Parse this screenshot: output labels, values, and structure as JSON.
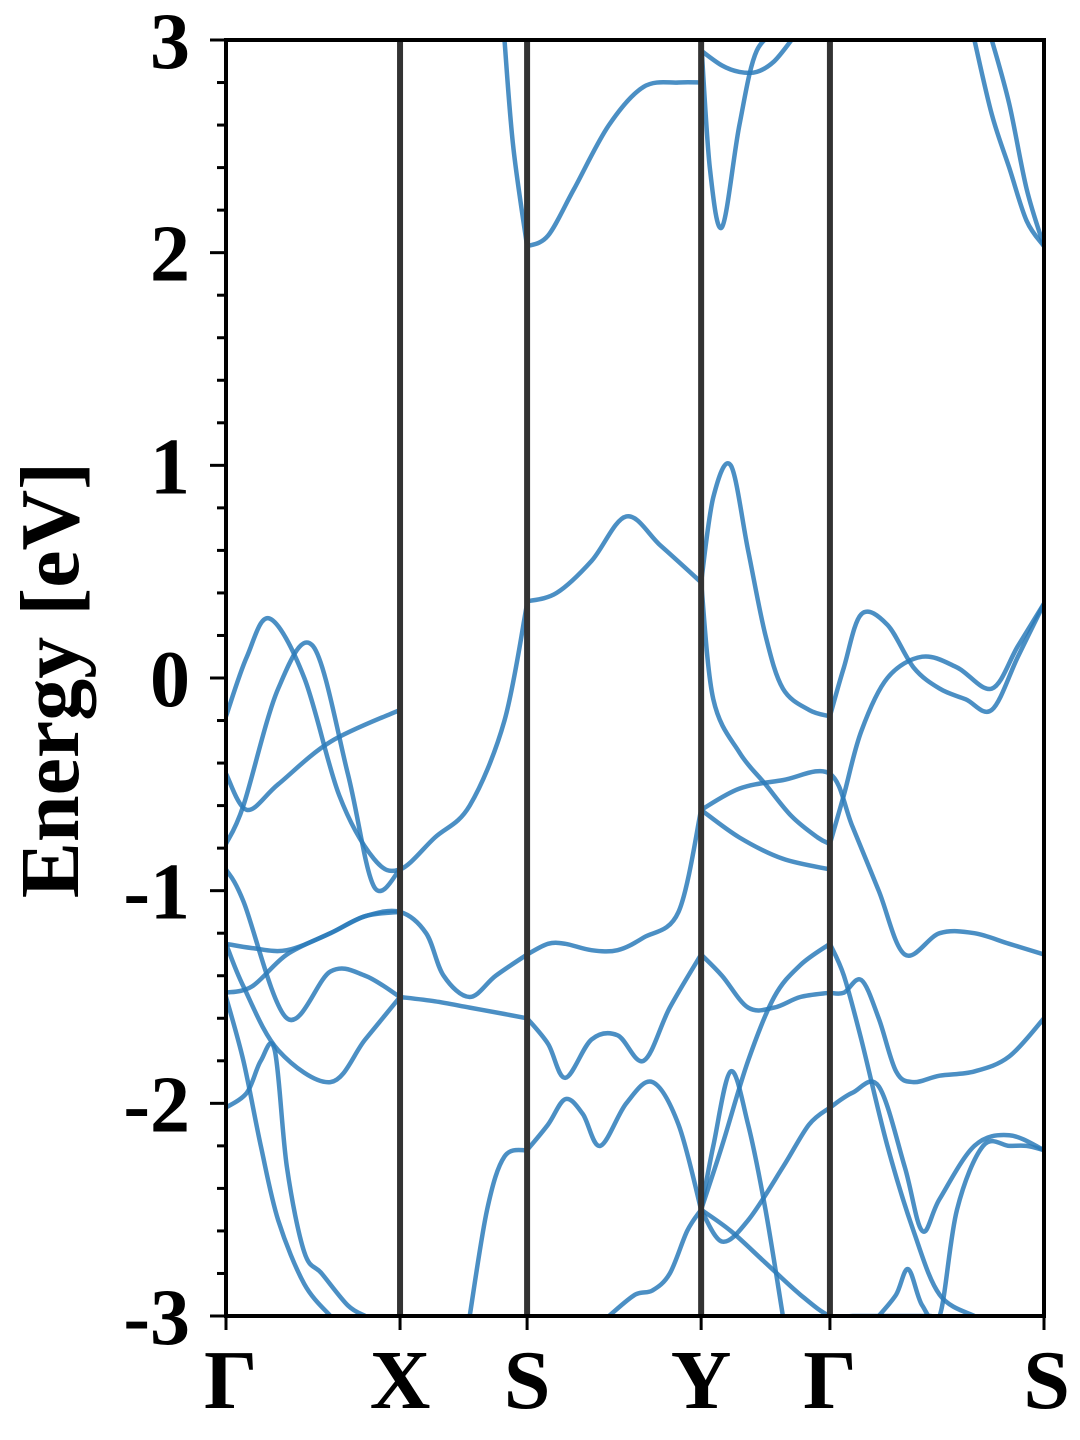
{
  "chart_data": {
    "type": "line",
    "title": "",
    "xlabel": "",
    "ylabel": "Energy [eV]",
    "ylim": [
      -3,
      3
    ],
    "y_ticks": [
      "-3",
      "-2",
      "-1",
      "0",
      "1",
      "2",
      "3"
    ],
    "y_minor_step": 0.2,
    "x_ticks": [
      {
        "label": "Γ",
        "pos": 0.0
      },
      {
        "label": "X",
        "pos": 1.0
      },
      {
        "label": "S",
        "pos": 1.73
      },
      {
        "label": "Y",
        "pos": 2.73
      },
      {
        "label": "Γ",
        "pos": 3.47
      },
      {
        "label": "S",
        "pos": 4.7
      }
    ],
    "xlim": [
      0,
      4.7
    ],
    "colors": {
      "bands": "#2b7bba",
      "kpath_lines": "#333333"
    },
    "grid": false,
    "series": [
      {
        "x": [
          0,
          0.12,
          0.25,
          0.45,
          0.65,
          0.85,
          1.0,
          1.2,
          1.4,
          1.6,
          1.73
        ],
        "y": [
          -0.18,
          0.1,
          0.28,
          0.0,
          -0.55,
          -0.85,
          -0.9,
          -0.75,
          -0.6,
          -0.2,
          0.35
        ]
      },
      {
        "x": [
          0,
          0.1,
          0.3,
          0.5,
          0.7,
          0.85,
          1.0
        ],
        "y": [
          -0.78,
          -0.6,
          -0.05,
          0.15,
          -0.45,
          -0.98,
          -0.9
        ]
      },
      {
        "x": [
          0,
          0.12,
          0.3,
          0.6,
          1.0
        ],
        "y": [
          -0.45,
          -0.62,
          -0.5,
          -0.3,
          -0.15
        ]
      },
      {
        "x": [
          1.73,
          1.9,
          2.1,
          2.3,
          2.5,
          2.73
        ],
        "y": [
          0.36,
          0.4,
          0.55,
          0.76,
          0.62,
          0.45
        ]
      },
      {
        "x": [
          2.73,
          2.8,
          2.9,
          3.0,
          3.1,
          3.2,
          3.35,
          3.47
        ],
        "y": [
          0.45,
          0.85,
          1.0,
          0.6,
          0.2,
          -0.05,
          -0.15,
          -0.18
        ]
      },
      {
        "x": [
          3.47,
          3.55,
          3.65,
          3.8,
          3.95,
          4.1,
          4.25,
          4.4,
          4.55,
          4.7
        ],
        "y": [
          -0.18,
          0.05,
          0.3,
          0.25,
          0.05,
          -0.05,
          -0.1,
          -0.15,
          0.1,
          0.35
        ]
      },
      {
        "x": [
          2.73,
          2.8,
          2.95,
          3.1,
          3.25,
          3.4,
          3.47
        ],
        "y": [
          0.45,
          -0.1,
          -0.35,
          -0.5,
          -0.65,
          -0.75,
          -0.78
        ]
      },
      {
        "x": [
          3.47,
          3.55,
          3.65,
          3.8,
          4.0,
          4.2,
          4.4,
          4.55,
          4.7
        ],
        "y": [
          -0.78,
          -0.55,
          -0.25,
          0.0,
          0.1,
          0.05,
          -0.05,
          0.15,
          0.35
        ]
      },
      {
        "x": [
          2.73,
          2.95,
          3.2,
          3.47,
          3.6,
          3.75,
          3.9,
          4.1,
          4.3,
          4.5,
          4.7
        ],
        "y": [
          -0.62,
          -0.52,
          -0.48,
          -0.45,
          -0.7,
          -1.0,
          -1.3,
          -1.2,
          -1.2,
          -1.25,
          -1.3
        ]
      },
      {
        "x": [
          2.73,
          2.95,
          3.2,
          3.47
        ],
        "y": [
          -0.62,
          -0.75,
          -0.85,
          -0.9
        ]
      },
      {
        "x": [
          0,
          0.15,
          0.35,
          0.6,
          0.8,
          1.0,
          1.15,
          1.25,
          1.4,
          1.55,
          1.73
        ],
        "y": [
          -1.25,
          -1.27,
          -1.28,
          -1.2,
          -1.12,
          -1.1,
          -1.2,
          -1.4,
          -1.5,
          -1.4,
          -1.3
        ]
      },
      {
        "x": [
          1.73,
          1.85,
          1.95,
          2.1,
          2.25,
          2.4,
          2.6,
          2.73
        ],
        "y": [
          -1.3,
          -1.25,
          -1.25,
          -1.28,
          -1.28,
          -1.22,
          -1.1,
          -0.62
        ]
      },
      {
        "x": [
          0,
          0.15,
          0.35,
          0.6,
          0.8,
          1.0
        ],
        "y": [
          -1.48,
          -1.45,
          -1.3,
          -1.2,
          -1.12,
          -1.1
        ]
      },
      {
        "x": [
          0,
          0.1,
          0.35,
          0.6,
          0.8,
          1.0
        ],
        "y": [
          -0.9,
          -1.05,
          -1.6,
          -1.38,
          -1.4,
          -1.5
        ]
      },
      {
        "x": [
          1.0,
          1.2,
          1.4,
          1.6,
          1.73
        ],
        "y": [
          -1.5,
          -1.52,
          -1.55,
          -1.58,
          -1.6
        ]
      },
      {
        "x": [
          1.73,
          1.85,
          1.95,
          2.1,
          2.25,
          2.4,
          2.55,
          2.73
        ],
        "y": [
          -1.6,
          -1.72,
          -1.88,
          -1.7,
          -1.68,
          -1.8,
          -1.55,
          -1.3
        ]
      },
      {
        "x": [
          2.73,
          2.85,
          3.0,
          3.15,
          3.3,
          3.47
        ],
        "y": [
          -1.3,
          -1.4,
          -1.55,
          -1.55,
          -1.5,
          -1.48
        ]
      },
      {
        "x": [
          3.47,
          3.55,
          3.65,
          3.75,
          3.85,
          3.95,
          4.1,
          4.3,
          4.5,
          4.7
        ],
        "y": [
          -1.48,
          -1.48,
          -1.42,
          -1.6,
          -1.85,
          -1.9,
          -1.87,
          -1.85,
          -1.78,
          -1.6
        ]
      },
      {
        "x": [
          0,
          0.1,
          0.3,
          0.6,
          0.8,
          1.0
        ],
        "y": [
          -1.25,
          -1.45,
          -1.75,
          -1.9,
          -1.7,
          -1.5
        ]
      },
      {
        "x": [
          0,
          0.12,
          0.2,
          0.28,
          0.35,
          0.45,
          0.55,
          0.7,
          0.8
        ],
        "y": [
          -2.02,
          -1.95,
          -1.8,
          -1.75,
          -2.3,
          -2.7,
          -2.8,
          -2.95,
          -3.0
        ]
      },
      {
        "x": [
          0,
          0.1,
          0.2,
          0.3,
          0.45,
          0.6
        ],
        "y": [
          -1.5,
          -1.8,
          -2.2,
          -2.55,
          -2.85,
          -3.0
        ]
      },
      {
        "x": [
          1.4,
          1.5,
          1.6,
          1.73
        ],
        "y": [
          -3.0,
          -2.5,
          -2.25,
          -2.22
        ]
      },
      {
        "x": [
          1.73,
          1.85,
          1.95,
          2.05,
          2.15,
          2.3,
          2.45,
          2.6,
          2.73
        ],
        "y": [
          -2.22,
          -2.1,
          -1.98,
          -2.05,
          -2.2,
          -2.0,
          -1.9,
          -2.1,
          -2.5
        ]
      },
      {
        "x": [
          2.73,
          2.85,
          3.0,
          3.15,
          3.3,
          3.47
        ],
        "y": [
          -2.5,
          -2.2,
          -1.8,
          -1.5,
          -1.35,
          -1.25
        ]
      },
      {
        "x": [
          2.73,
          2.85,
          3.0,
          3.2,
          3.35,
          3.47
        ],
        "y": [
          -2.5,
          -2.65,
          -2.55,
          -2.3,
          -2.1,
          -2.02
        ]
      },
      {
        "x": [
          3.47,
          3.6,
          3.75,
          3.9,
          4.0,
          4.1,
          4.3,
          4.5,
          4.7
        ],
        "y": [
          -2.02,
          -1.95,
          -1.92,
          -2.3,
          -2.6,
          -2.45,
          -2.2,
          -2.15,
          -2.22
        ]
      },
      {
        "x": [
          2.2,
          2.35,
          2.45,
          2.55,
          2.65,
          2.73
        ],
        "y": [
          -3.0,
          -2.9,
          -2.88,
          -2.8,
          -2.6,
          -2.5
        ]
      },
      {
        "x": [
          2.73,
          2.8,
          2.9,
          3.0,
          3.1,
          3.2
        ],
        "y": [
          -2.5,
          -2.2,
          -1.85,
          -2.1,
          -2.5,
          -3.0
        ]
      },
      {
        "x": [
          2.73,
          2.9,
          3.1,
          3.3,
          3.47,
          3.6,
          3.75,
          3.9,
          4.05
        ],
        "y": [
          -2.5,
          -2.6,
          -2.75,
          -2.9,
          -3.0,
          -3.0,
          -3.0,
          -3.0,
          -3.0
        ]
      },
      {
        "x": [
          3.47,
          3.55,
          3.65,
          3.8,
          3.95,
          4.1,
          4.3
        ],
        "y": [
          -1.25,
          -1.4,
          -1.7,
          -2.2,
          -2.6,
          -2.9,
          -3.0
        ]
      },
      {
        "x": [
          3.75,
          3.85,
          3.92,
          4.0,
          4.1,
          4.2,
          4.35,
          4.5,
          4.6,
          4.7
        ],
        "y": [
          -3.0,
          -2.9,
          -2.78,
          -2.95,
          -3.0,
          -2.5,
          -2.2,
          -2.2,
          -2.2,
          -2.22
        ]
      },
      {
        "x": [
          1.6,
          1.65,
          1.73
        ],
        "y": [
          3.0,
          2.5,
          2.03
        ]
      },
      {
        "x": [
          1.73,
          1.85,
          2.0,
          2.2,
          2.4,
          2.6,
          2.73
        ],
        "y": [
          2.03,
          2.08,
          2.3,
          2.6,
          2.78,
          2.8,
          2.8
        ]
      },
      {
        "x": [
          2.73,
          2.78,
          2.85,
          2.95,
          3.05,
          3.2
        ],
        "y": [
          3.0,
          2.4,
          2.12,
          2.6,
          2.95,
          3.05
        ]
      },
      {
        "x": [
          2.73,
          2.85,
          2.95,
          3.05,
          3.15,
          3.25
        ],
        "y": [
          2.95,
          2.88,
          2.85,
          2.85,
          2.9,
          3.0
        ]
      },
      {
        "x": [
          4.3,
          4.4,
          4.5,
          4.6,
          4.7
        ],
        "y": [
          3.0,
          2.65,
          2.4,
          2.15,
          2.03
        ]
      },
      {
        "x": [
          4.4,
          4.5,
          4.6,
          4.7
        ],
        "y": [
          3.0,
          2.7,
          2.3,
          2.03
        ]
      }
    ]
  }
}
